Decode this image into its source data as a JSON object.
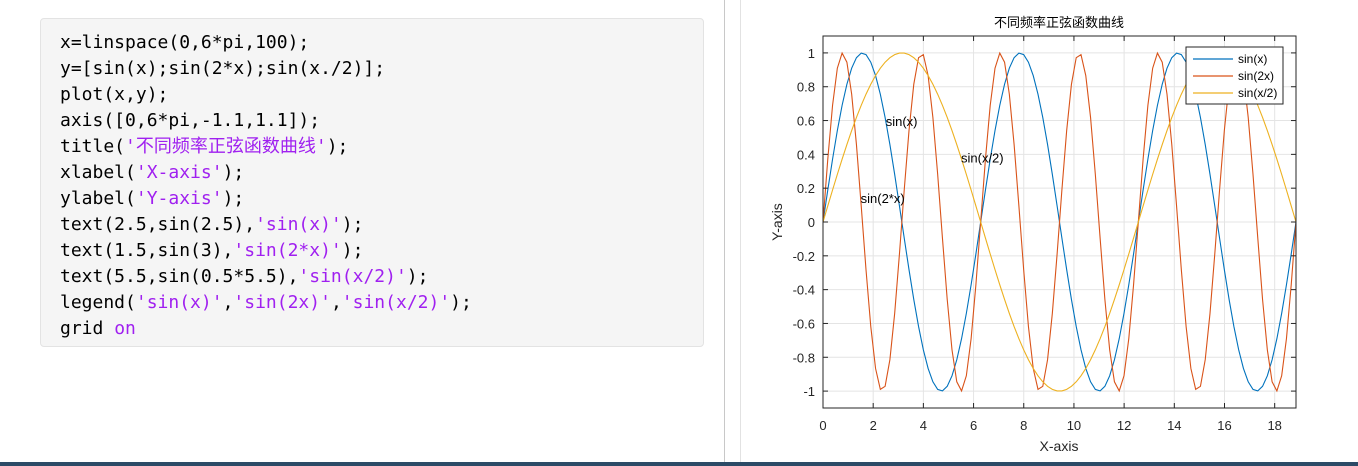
{
  "code_lines": [
    [
      {
        "t": "x=linspace(0,6*pi,100);",
        "c": "plain"
      }
    ],
    [
      {
        "t": "y=[sin(x);sin(2*x);sin(x./2)];",
        "c": "plain"
      }
    ],
    [
      {
        "t": "plot(x,y);",
        "c": "plain"
      }
    ],
    [
      {
        "t": "axis([0,6*pi,-1.1,1.1]);",
        "c": "plain"
      }
    ],
    [
      {
        "t": "title(",
        "c": "plain"
      },
      {
        "t": "'不同频率正弦函数曲线'",
        "c": "str"
      },
      {
        "t": ");",
        "c": "plain"
      }
    ],
    [
      {
        "t": "xlabel(",
        "c": "plain"
      },
      {
        "t": "'X-axis'",
        "c": "str"
      },
      {
        "t": ");",
        "c": "plain"
      }
    ],
    [
      {
        "t": "ylabel(",
        "c": "plain"
      },
      {
        "t": "'Y-axis'",
        "c": "str"
      },
      {
        "t": ");",
        "c": "plain"
      }
    ],
    [
      {
        "t": "text(2.5,sin(2.5),",
        "c": "plain"
      },
      {
        "t": "'sin(x)'",
        "c": "str"
      },
      {
        "t": ");",
        "c": "plain"
      }
    ],
    [
      {
        "t": "text(1.5,sin(3),",
        "c": "plain"
      },
      {
        "t": "'sin(2*x)'",
        "c": "str"
      },
      {
        "t": ");",
        "c": "plain"
      }
    ],
    [
      {
        "t": "text(5.5,sin(0.5*5.5),",
        "c": "plain"
      },
      {
        "t": "'sin(x/2)'",
        "c": "str"
      },
      {
        "t": ");",
        "c": "plain"
      }
    ],
    [
      {
        "t": "legend(",
        "c": "plain"
      },
      {
        "t": "'sin(x)'",
        "c": "str"
      },
      {
        "t": ",",
        "c": "plain"
      },
      {
        "t": "'sin(2x)'",
        "c": "str"
      },
      {
        "t": ",",
        "c": "plain"
      },
      {
        "t": "'sin(x/2)'",
        "c": "str"
      },
      {
        "t": ");",
        "c": "plain"
      }
    ],
    [
      {
        "t": "grid ",
        "c": "plain"
      },
      {
        "t": "on",
        "c": "kw"
      }
    ]
  ],
  "colors": {
    "string": "#a020f0",
    "keyword": "#a020f0",
    "sin_x": "#0072bd",
    "sin_2x": "#d95319",
    "sin_x2": "#edb120"
  },
  "chart_data": {
    "type": "line",
    "title": "不同频率正弦函数曲线",
    "xlabel": "X-axis",
    "ylabel": "Y-axis",
    "xlim": [
      0,
      18.8496
    ],
    "ylim": [
      -1.1,
      1.1
    ],
    "xticks": [
      0,
      2,
      4,
      6,
      8,
      10,
      12,
      14,
      16,
      18
    ],
    "yticks": [
      -1,
      -0.8,
      -0.6,
      -0.4,
      -0.2,
      0,
      0.2,
      0.4,
      0.6,
      0.8,
      1
    ],
    "xtick_labels": [
      "0",
      "2",
      "4",
      "6",
      "8",
      "10",
      "12",
      "14",
      "16",
      "18"
    ],
    "ytick_labels": [
      "-1",
      "-0.8",
      "-0.6",
      "-0.4",
      "-0.2",
      "0",
      "0.2",
      "0.4",
      "0.6",
      "0.8",
      "1"
    ],
    "grid": true,
    "legend_position": "top-right",
    "x_sampling": {
      "start": 0,
      "end": 18.8496,
      "count": 100
    },
    "series": [
      {
        "name": "sin(x)",
        "function": "sin",
        "frequency": 1,
        "color": "#0072bd"
      },
      {
        "name": "sin(2x)",
        "function": "sin",
        "frequency": 2,
        "color": "#d95319"
      },
      {
        "name": "sin(x/2)",
        "function": "sin",
        "frequency": 0.5,
        "color": "#edb120"
      }
    ],
    "annotations": [
      {
        "text": "sin(x)",
        "x": 2.5,
        "y": 0.598
      },
      {
        "text": "sin(2*x)",
        "x": 1.5,
        "y": 0.141
      },
      {
        "text": "sin(x/2)",
        "x": 5.5,
        "y": 0.381
      }
    ]
  }
}
